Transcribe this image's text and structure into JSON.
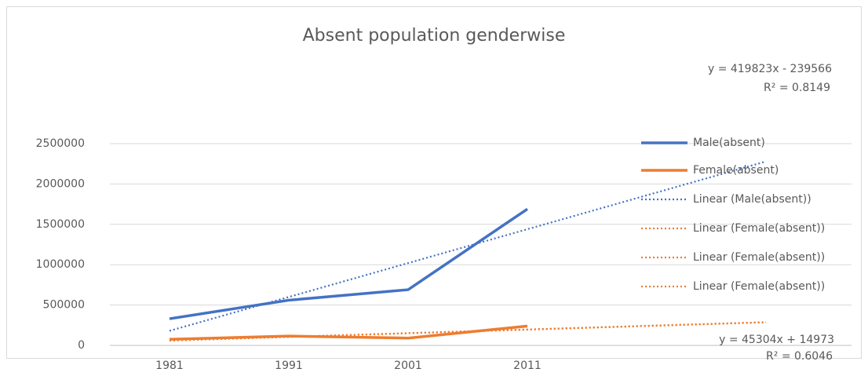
{
  "chart_data": {
    "type": "line",
    "title": "Absent population genderwise",
    "categories": [
      "1981",
      "1991",
      "2001",
      "2011"
    ],
    "ylim": [
      0,
      2500000
    ],
    "yticks": [
      0,
      500000,
      1000000,
      1500000,
      2000000,
      2500000
    ],
    "grid": true,
    "legend": "right",
    "series": [
      {
        "name": "Male(absent)",
        "color": "#4472c4",
        "values": [
          330000,
          560000,
          690000,
          1690000
        ]
      },
      {
        "name": "Female(absent)",
        "color": "#ed7d31",
        "values": [
          75000,
          115000,
          90000,
          240000
        ]
      }
    ],
    "trendlines": [
      {
        "name": "Linear (Male(absent))",
        "color": "#4472c4",
        "slope": 419823,
        "intercept": -239566,
        "forecast_forward": 2,
        "equation": "y = 419823x - 239566",
        "r2": "R² = 0.8149"
      },
      {
        "name": "Linear (Female(absent))",
        "color": "#ed7d31",
        "slope": 45304,
        "intercept": 14973,
        "forecast_forward": 2,
        "equation": "y = 45304x + 14973",
        "r2": "R² = 0.6046"
      },
      {
        "name": "Linear (Female(absent))",
        "color": "#ed7d31",
        "slope": 45304,
        "intercept": 14973,
        "forecast_forward": 2
      },
      {
        "name": "Linear (Female(absent))",
        "color": "#ed7d31",
        "slope": 45304,
        "intercept": 14973,
        "forecast_forward": 2
      }
    ]
  }
}
